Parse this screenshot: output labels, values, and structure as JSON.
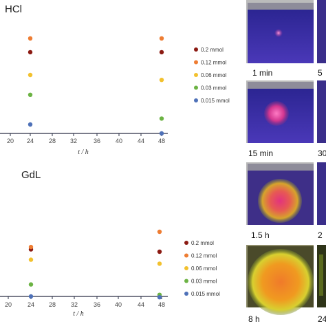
{
  "chart_data": [
    {
      "type": "scatter",
      "title": "HCl",
      "xlabel": "t / h",
      "x_ticks": [
        20,
        24,
        28,
        32,
        36,
        40,
        44,
        48
      ],
      "xlim": [
        17,
        49
      ],
      "ylim": [
        0,
        1
      ],
      "legend_position": "right",
      "series": [
        {
          "name": "0.2 mmol",
          "color": "#8b1a12",
          "points": [
            [
              24,
              0.82
            ],
            [
              48,
              0.82
            ]
          ]
        },
        {
          "name": "0.12 mmol",
          "color": "#ee7d33",
          "points": [
            [
              24,
              0.96
            ],
            [
              48,
              0.96
            ]
          ]
        },
        {
          "name": "0.06 mmol",
          "color": "#f2c12e",
          "points": [
            [
              24,
              0.59
            ],
            [
              48,
              0.54
            ]
          ]
        },
        {
          "name": "0.03 mmol",
          "color": "#6cb344",
          "points": [
            [
              24,
              0.39
            ],
            [
              48,
              0.15
            ]
          ]
        },
        {
          "name": "0.015 mmol",
          "color": "#4e71b8",
          "points": [
            [
              24,
              0.09
            ],
            [
              48,
              0.0
            ]
          ]
        }
      ]
    },
    {
      "type": "scatter",
      "title": "GdL",
      "xlabel": "t / h",
      "x_ticks": [
        20,
        24,
        28,
        32,
        36,
        40,
        44,
        48
      ],
      "xlim": [
        17,
        49
      ],
      "ylim": [
        0,
        1
      ],
      "legend_position": "right",
      "series": [
        {
          "name": "0.2 mmol",
          "color": "#8b1a12",
          "points": [
            [
              24,
              0.59
            ],
            [
              47.6,
              0.56
            ]
          ]
        },
        {
          "name": "0.12 mmol",
          "color": "#ee7d33",
          "points": [
            [
              24,
              0.62
            ],
            [
              47.6,
              0.81
            ]
          ]
        },
        {
          "name": "0.06 mmol",
          "color": "#f2c12e",
          "points": [
            [
              24,
              0.46
            ],
            [
              47.6,
              0.41
            ]
          ]
        },
        {
          "name": "0.03 mmol",
          "color": "#6cb344",
          "points": [
            [
              24,
              0.15
            ],
            [
              47.6,
              0.02
            ]
          ]
        },
        {
          "name": "0.015 mmol",
          "color": "#4e71b8",
          "points": [
            [
              24,
              0.0
            ],
            [
              47.6,
              -0.01
            ]
          ]
        }
      ]
    }
  ],
  "photos": [
    {
      "caption": "1 min"
    },
    {
      "caption": "5"
    },
    {
      "caption": "15 min"
    },
    {
      "caption": "30"
    },
    {
      "caption": "1.5 h"
    },
    {
      "caption": "2"
    },
    {
      "caption": "8 h"
    },
    {
      "caption": "24"
    }
  ]
}
